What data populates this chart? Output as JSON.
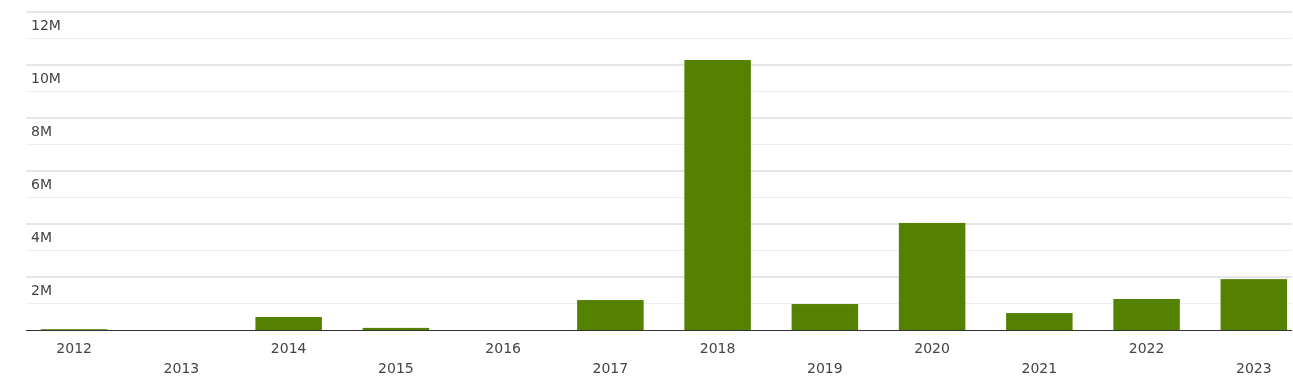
{
  "chart_data": {
    "type": "bar",
    "categories": [
      "2012",
      "2013",
      "2014",
      "2015",
      "2016",
      "2017",
      "2018",
      "2019",
      "2020",
      "2021",
      "2022",
      "2023"
    ],
    "values": [
      30000,
      0,
      490000,
      80000,
      0,
      1130000,
      10190000,
      980000,
      4040000,
      640000,
      1170000,
      1920000
    ],
    "color": "#548200",
    "ylim": [
      0,
      12000000
    ],
    "yticks": [
      {
        "value": 1000000,
        "label": null
      },
      {
        "value": 2000000,
        "label": "2M"
      },
      {
        "value": 3000000,
        "label": null
      },
      {
        "value": 4000000,
        "label": "4M"
      },
      {
        "value": 5000000,
        "label": null
      },
      {
        "value": 6000000,
        "label": "6M"
      },
      {
        "value": 7000000,
        "label": null
      },
      {
        "value": 8000000,
        "label": "8M"
      },
      {
        "value": 9000000,
        "label": null
      },
      {
        "value": 10000000,
        "label": "10M"
      },
      {
        "value": 11000000,
        "label": null
      },
      {
        "value": 12000000,
        "label": "12M"
      }
    ],
    "grid": "y"
  }
}
